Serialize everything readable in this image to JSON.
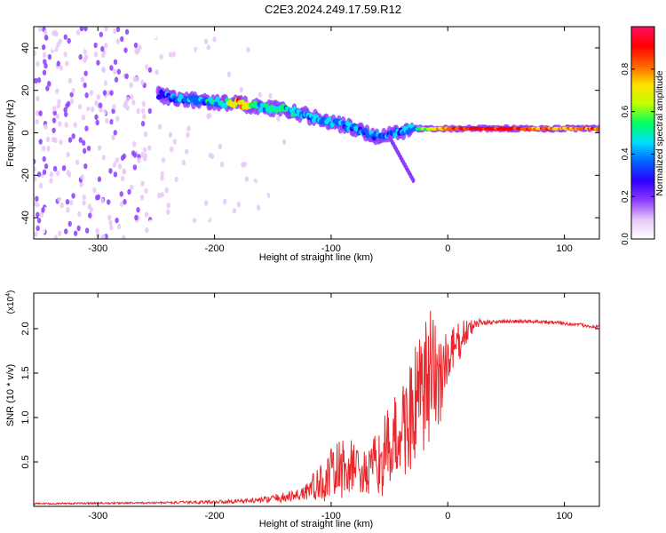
{
  "title": "C2E3.2024.249.17.59.R12",
  "chart_data": [
    {
      "type": "heatmap",
      "name": "spectrogram",
      "xlabel": "Height of straight line (km)",
      "ylabel": "Frequency (Hz)",
      "xlim": [
        -355,
        130
      ],
      "ylim": [
        -50,
        50
      ],
      "xticks": [
        -300,
        -200,
        -100,
        0,
        100
      ],
      "yticks": [
        -40,
        -20,
        0,
        20,
        40
      ],
      "colorbar": {
        "label": "Normalized spectral amplitude",
        "range": [
          0,
          1
        ],
        "ticks": [
          0.0,
          0.2,
          0.4,
          0.6,
          0.8
        ],
        "colors": [
          "#ffffff",
          "#e6c8f7",
          "#8c3cff",
          "#3000ff",
          "#0060ff",
          "#00e0ff",
          "#00ff60",
          "#c0ff00",
          "#ffe000",
          "#ff6000",
          "#ff0000",
          "#ff1060"
        ]
      },
      "ridge": [
        {
          "x": -248,
          "y": 18,
          "a": 0.35
        },
        {
          "x": -230,
          "y": 16,
          "a": 0.4
        },
        {
          "x": -210,
          "y": 15,
          "a": 0.45
        },
        {
          "x": -190,
          "y": 14,
          "a": 0.55
        },
        {
          "x": -180,
          "y": 14,
          "a": 0.85
        },
        {
          "x": -160,
          "y": 12,
          "a": 0.5
        },
        {
          "x": -140,
          "y": 11,
          "a": 0.5
        },
        {
          "x": -120,
          "y": 8,
          "a": 0.45
        },
        {
          "x": -100,
          "y": 5,
          "a": 0.45
        },
        {
          "x": -80,
          "y": 2,
          "a": 0.45
        },
        {
          "x": -60,
          "y": -2,
          "a": 0.4
        },
        {
          "x": -45,
          "y": 0,
          "a": 0.4
        },
        {
          "x": -30,
          "y": 2,
          "a": 0.45
        },
        {
          "x": -10,
          "y": 2,
          "a": 0.75
        },
        {
          "x": 0,
          "y": 2,
          "a": 0.85
        },
        {
          "x": 20,
          "y": 2,
          "a": 0.95
        },
        {
          "x": 60,
          "y": 2,
          "a": 0.95
        },
        {
          "x": 90,
          "y": 2,
          "a": 0.8
        },
        {
          "x": 130,
          "y": 2,
          "a": 0.85
        }
      ]
    },
    {
      "type": "line",
      "name": "snr",
      "xlabel": "Height of straight line (km)",
      "ylabel": "SNR (10 * v/v)",
      "yscale_label": "(x10",
      "yscale_exp": "4",
      "xlim": [
        -355,
        130
      ],
      "ylim": [
        0,
        2.4
      ],
      "xticks": [
        -300,
        -200,
        -100,
        0,
        100
      ],
      "yticks": [
        0.5,
        1.0,
        1.5,
        2.0
      ],
      "ytick_labels": [
        "0.5",
        "1.0",
        "1.5",
        "2.0"
      ],
      "color": "#e8282c",
      "envelope": [
        {
          "x": -355,
          "y": 0.03,
          "n": 0.01
        },
        {
          "x": -250,
          "y": 0.04,
          "n": 0.01
        },
        {
          "x": -200,
          "y": 0.05,
          "n": 0.02
        },
        {
          "x": -160,
          "y": 0.07,
          "n": 0.03
        },
        {
          "x": -130,
          "y": 0.12,
          "n": 0.07
        },
        {
          "x": -110,
          "y": 0.25,
          "n": 0.2
        },
        {
          "x": -95,
          "y": 0.4,
          "n": 0.35
        },
        {
          "x": -80,
          "y": 0.45,
          "n": 0.3
        },
        {
          "x": -70,
          "y": 0.35,
          "n": 0.25
        },
        {
          "x": -55,
          "y": 0.55,
          "n": 0.45
        },
        {
          "x": -40,
          "y": 0.85,
          "n": 0.55
        },
        {
          "x": -28,
          "y": 1.1,
          "n": 0.7
        },
        {
          "x": -15,
          "y": 1.4,
          "n": 0.85
        },
        {
          "x": -5,
          "y": 1.5,
          "n": 0.55
        },
        {
          "x": 5,
          "y": 1.75,
          "n": 0.3
        },
        {
          "x": 15,
          "y": 1.95,
          "n": 0.15
        },
        {
          "x": 25,
          "y": 2.06,
          "n": 0.05
        },
        {
          "x": 40,
          "y": 2.08,
          "n": 0.02
        },
        {
          "x": 80,
          "y": 2.08,
          "n": 0.02
        },
        {
          "x": 100,
          "y": 2.06,
          "n": 0.02
        },
        {
          "x": 130,
          "y": 2.02,
          "n": 0.02
        }
      ]
    }
  ]
}
